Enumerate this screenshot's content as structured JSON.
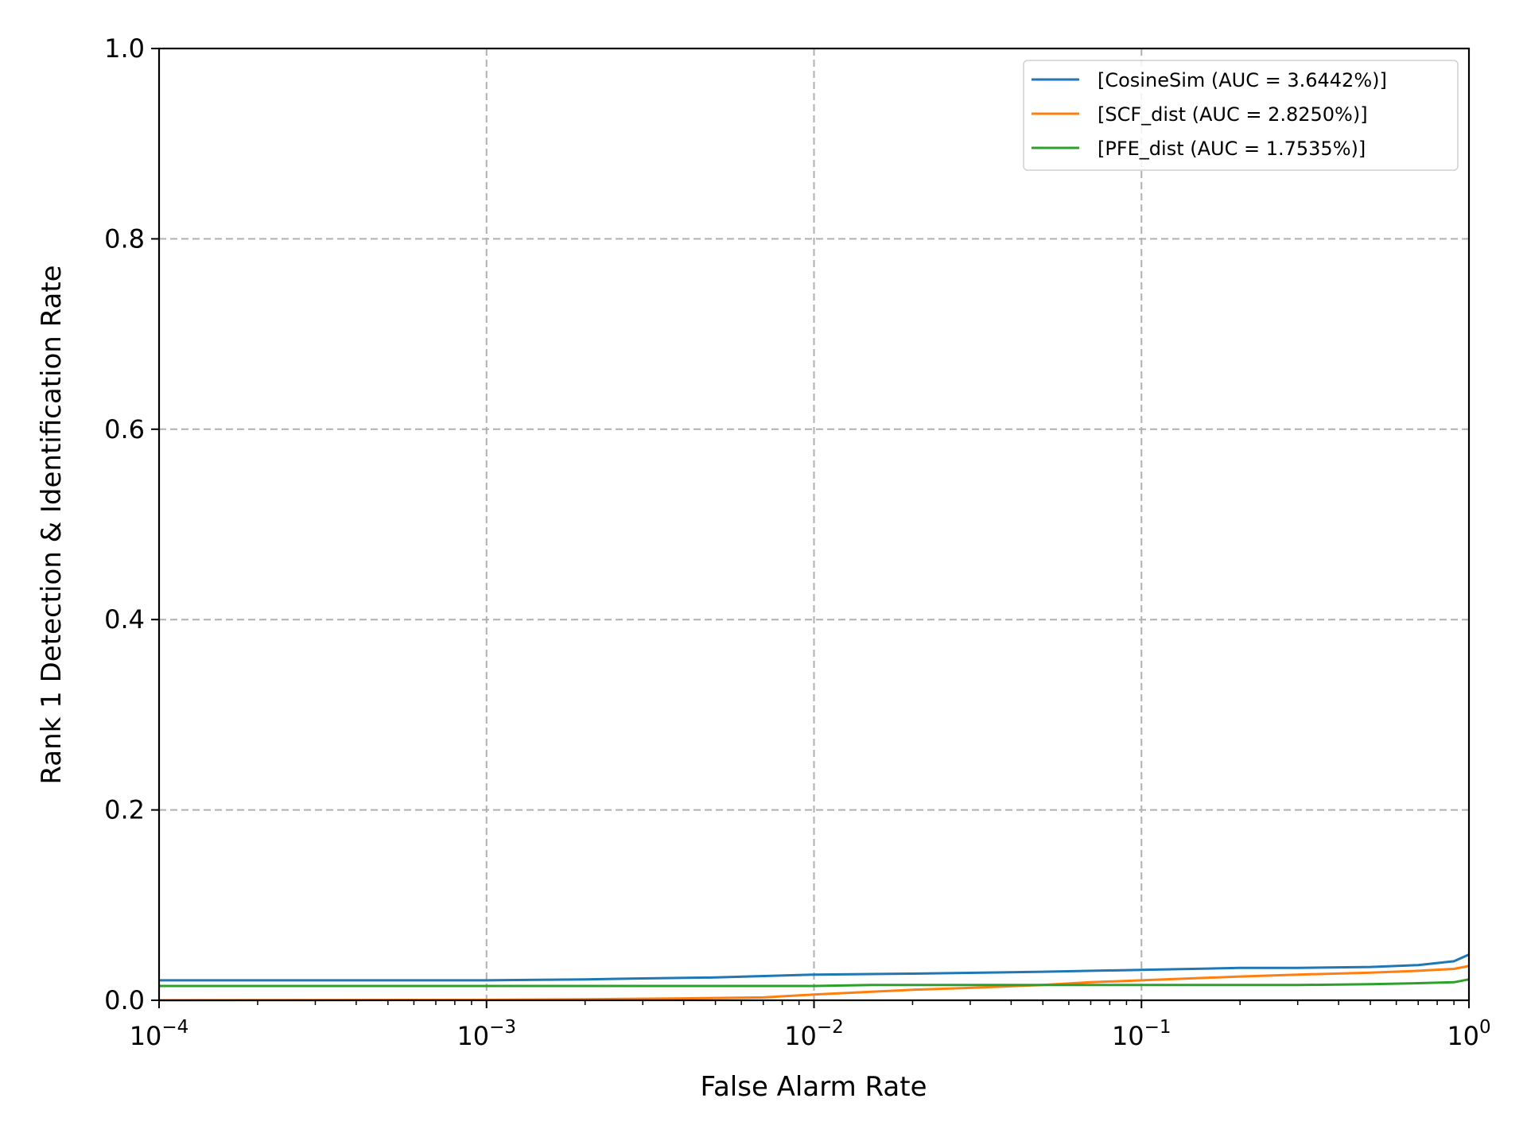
{
  "chart_data": {
    "type": "line",
    "xscale": "log",
    "xlim": [
      0.0001,
      1
    ],
    "ylim": [
      0.0,
      1.0
    ],
    "xlabel": "False Alarm Rate",
    "ylabel": "Rank 1 Detection & Identification Rate",
    "grid": true,
    "legend_position": "top-right",
    "x_ticks": [
      {
        "value": 0.0001,
        "base": "10",
        "exp": "−4"
      },
      {
        "value": 0.001,
        "base": "10",
        "exp": "−3"
      },
      {
        "value": 0.01,
        "base": "10",
        "exp": "−2"
      },
      {
        "value": 0.1,
        "base": "10",
        "exp": "−1"
      },
      {
        "value": 1,
        "base": "10",
        "exp": "0"
      }
    ],
    "y_ticks": [
      {
        "value": 0.0,
        "label": "0.0"
      },
      {
        "value": 0.2,
        "label": "0.2"
      },
      {
        "value": 0.4,
        "label": "0.4"
      },
      {
        "value": 0.6,
        "label": "0.6"
      },
      {
        "value": 0.8,
        "label": "0.8"
      },
      {
        "value": 1.0,
        "label": "1.0"
      }
    ],
    "series": [
      {
        "name": "[CosineSim (AUC = 3.6442%)]",
        "color": "#1f77b4",
        "x": [
          0.0001,
          0.0003,
          0.001,
          0.002,
          0.003,
          0.005,
          0.01,
          0.02,
          0.05,
          0.1,
          0.2,
          0.3,
          0.5,
          0.7,
          0.9,
          1.0
        ],
        "y": [
          0.021,
          0.021,
          0.021,
          0.022,
          0.023,
          0.024,
          0.027,
          0.028,
          0.03,
          0.032,
          0.034,
          0.034,
          0.035,
          0.037,
          0.041,
          0.048
        ]
      },
      {
        "name": "[SCF_dist (AUC = 2.8250%)]",
        "color": "#ff7f0e",
        "x": [
          0.0001,
          0.001,
          0.002,
          0.004,
          0.007,
          0.01,
          0.015,
          0.02,
          0.03,
          0.05,
          0.07,
          0.1,
          0.2,
          0.3,
          0.5,
          0.7,
          0.9,
          1.0
        ],
        "y": [
          0.0,
          0.0005,
          0.001,
          0.002,
          0.003,
          0.006,
          0.009,
          0.011,
          0.013,
          0.016,
          0.019,
          0.021,
          0.025,
          0.027,
          0.029,
          0.031,
          0.033,
          0.036
        ]
      },
      {
        "name": "[PFE_dist (AUC = 1.7535%)]",
        "color": "#2ca02c",
        "x": [
          0.0001,
          0.001,
          0.01,
          0.015,
          0.05,
          0.1,
          0.3,
          0.5,
          0.7,
          0.9,
          1.0
        ],
        "y": [
          0.015,
          0.015,
          0.015,
          0.016,
          0.016,
          0.016,
          0.016,
          0.017,
          0.018,
          0.019,
          0.022
        ]
      }
    ]
  }
}
